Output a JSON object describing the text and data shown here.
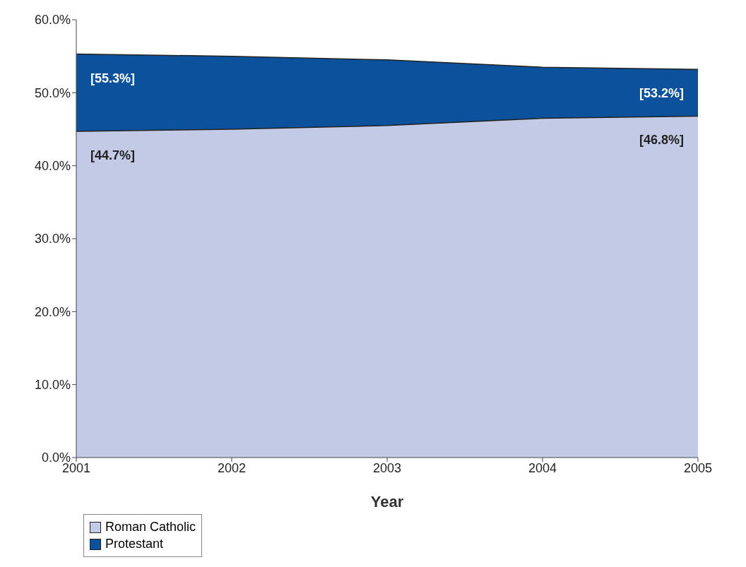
{
  "chart_data": {
    "type": "area",
    "xlabel": "Year",
    "categories": [
      "2001",
      "2002",
      "2003",
      "2004",
      "2005"
    ],
    "series": [
      {
        "name": "Roman Catholic",
        "color": "#c3cae6",
        "values": [
          44.7,
          45.0,
          45.5,
          46.5,
          46.8
        ],
        "value_labels": [
          "[44.7%]",
          null,
          null,
          null,
          "[46.8%]"
        ]
      },
      {
        "name": "Protestant",
        "color": "#0b519c",
        "values": [
          55.3,
          55.0,
          54.5,
          53.5,
          53.2
        ],
        "value_labels": [
          "[55.3%]",
          null,
          null,
          null,
          "[53.2%]"
        ]
      }
    ],
    "ylim": [
      0,
      60
    ],
    "yticks": [
      {
        "value": 0,
        "label": "0.0%"
      },
      {
        "value": 10,
        "label": "10.0%"
      },
      {
        "value": 20,
        "label": "20.0%"
      },
      {
        "value": 30,
        "label": "30.0%"
      },
      {
        "value": 40,
        "label": "40.0%"
      },
      {
        "value": 50,
        "label": "50.0%"
      },
      {
        "value": 60,
        "label": "60.0%"
      }
    ],
    "grid": false,
    "legend": "bottom left",
    "marker": "none"
  }
}
